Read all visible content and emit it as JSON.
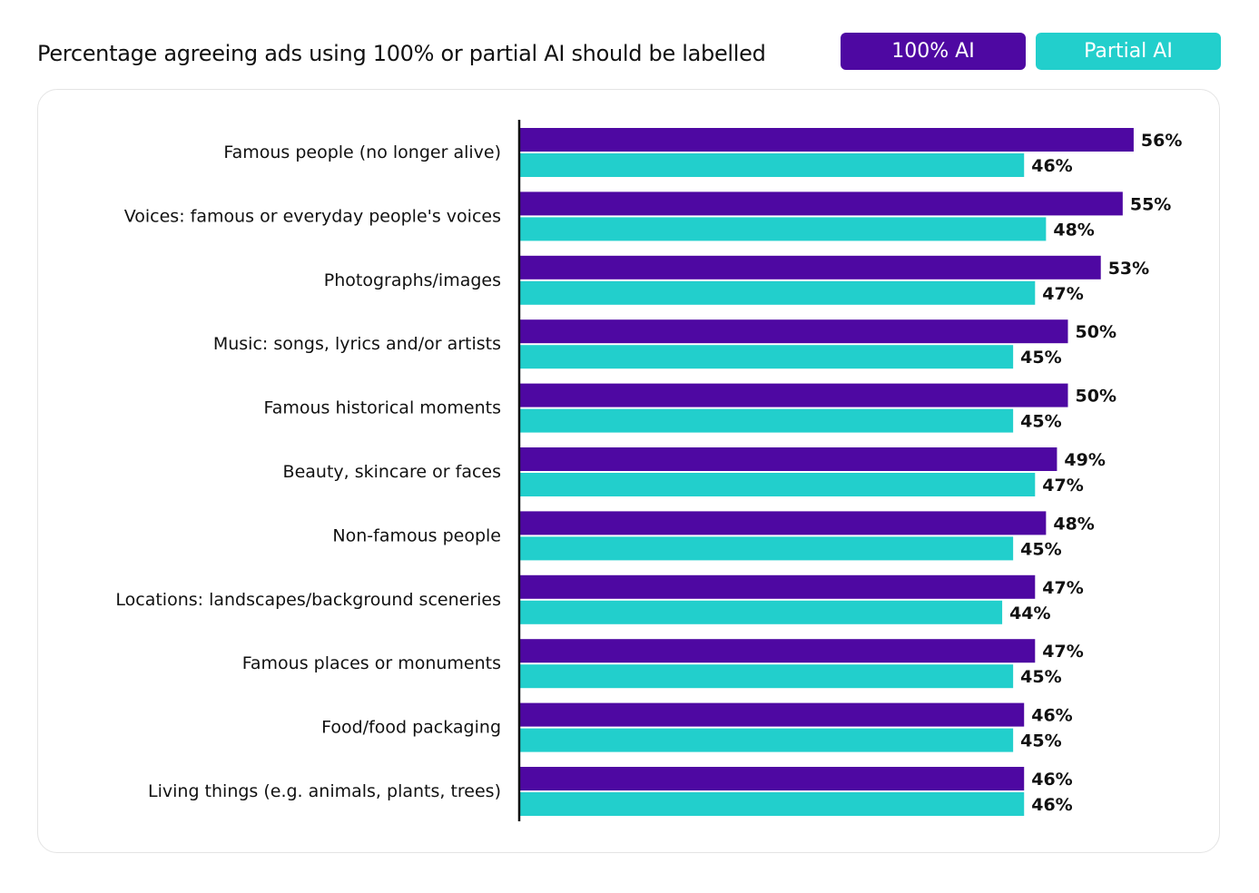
{
  "chart_data": {
    "type": "bar",
    "orientation": "horizontal",
    "title": "Percentage agreeing ads using 100% or partial AI should be labelled",
    "categories": [
      "Famous people (no longer alive)",
      "Voices: famous or everyday people's voices",
      "Photographs/images",
      "Music: songs, lyrics and/or artists",
      "Famous historical moments",
      "Beauty, skincare or faces",
      "Non-famous people",
      "Locations: landscapes/background sceneries",
      "Famous places or monuments",
      "Food/food packaging",
      "Living things (e.g. animals, plants, trees)"
    ],
    "series": [
      {
        "name": "100% AI",
        "color": "#4e08a2",
        "values": [
          56,
          55,
          53,
          50,
          50,
          49,
          48,
          47,
          47,
          46,
          46
        ]
      },
      {
        "name": "Partial AI",
        "color": "#22cfcc",
        "values": [
          46,
          48,
          47,
          45,
          45,
          47,
          45,
          44,
          45,
          45,
          46
        ]
      }
    ],
    "value_suffix": "%",
    "legend_position": "top-right",
    "grid": false,
    "xlim": [
      0,
      100
    ]
  }
}
